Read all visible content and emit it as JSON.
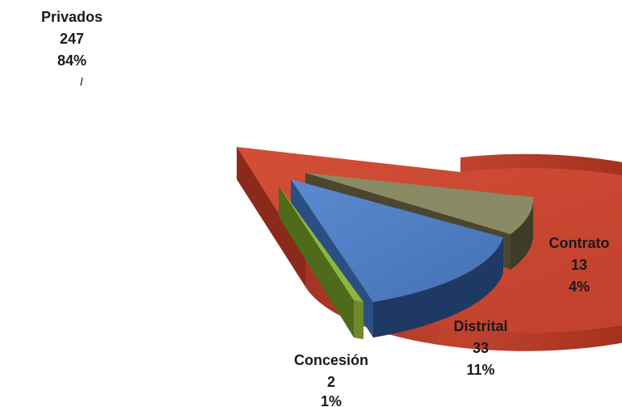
{
  "chart_data": {
    "type": "pie",
    "style": "3d-exploded",
    "slices": [
      {
        "name": "Privados",
        "value": 247,
        "percent": "84%",
        "color": "#C8452F"
      },
      {
        "name": "Contrato",
        "value": 13,
        "percent": "4%",
        "color": "#8A8A64"
      },
      {
        "name": "Distrital",
        "value": 33,
        "percent": "11%",
        "color": "#4F7EC3"
      },
      {
        "name": "Concesión",
        "value": 2,
        "percent": "1%",
        "color": "#8CB63C"
      }
    ],
    "labels": [
      {
        "name": "Privados",
        "value": "247",
        "percent": "84%"
      },
      {
        "name": "Contrato",
        "value": "13",
        "percent": "4%"
      },
      {
        "name": "Distrital",
        "value": "33",
        "percent": "11%"
      },
      {
        "name": "Concesión",
        "value": "2",
        "percent": "1%"
      }
    ]
  }
}
